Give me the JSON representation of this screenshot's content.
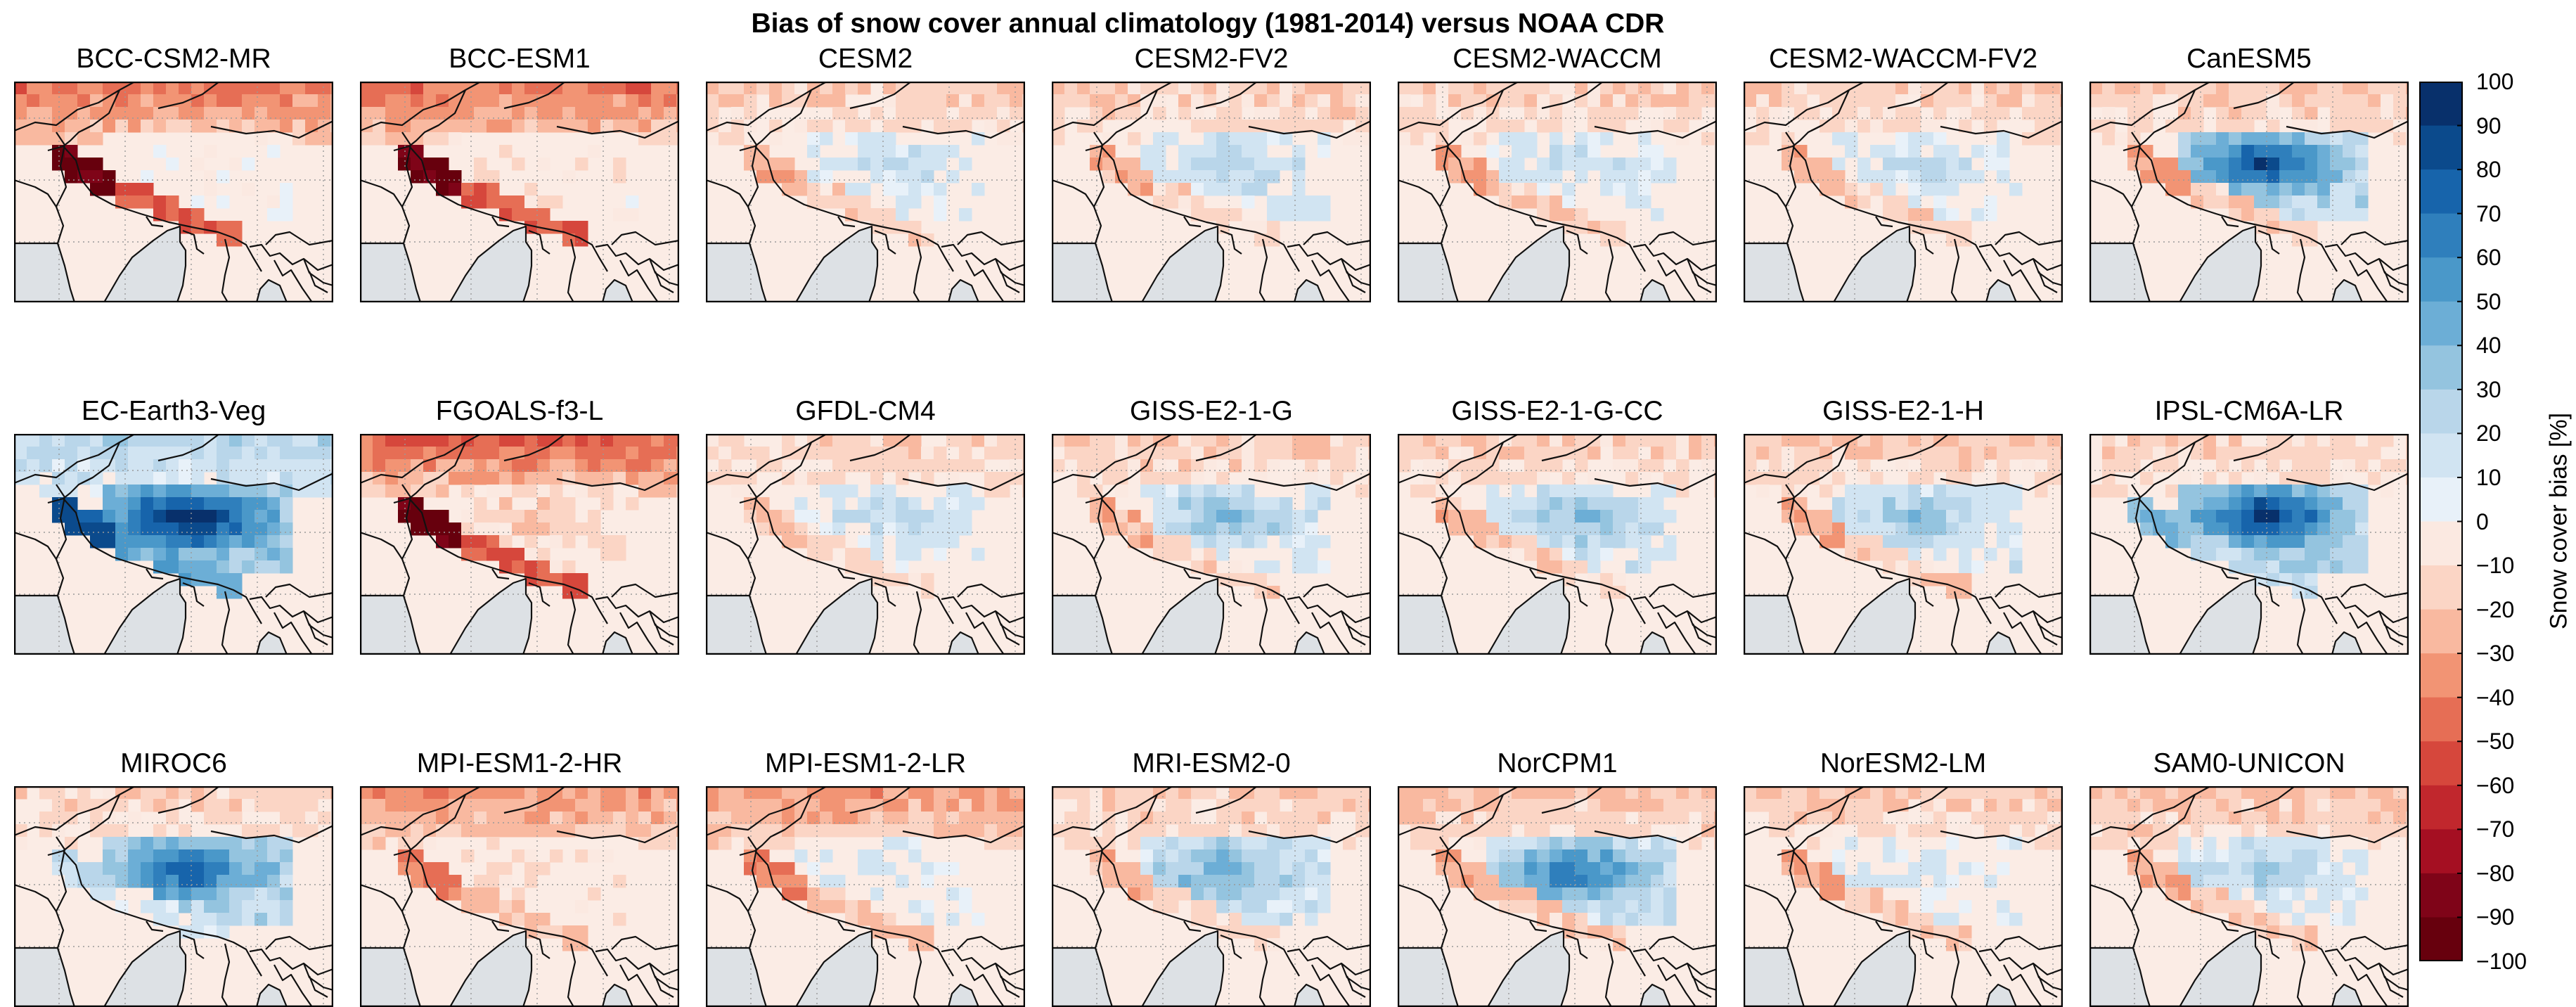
{
  "figure": {
    "title": "Bias of snow cover annual climatology (1981-2014) versus NOAA CDR"
  },
  "panels": [
    {
      "title": "BCC-CSM2-MR",
      "bias": -45,
      "hot": -90,
      "tibet": 0
    },
    {
      "title": "BCC-ESM1",
      "bias": -45,
      "hot": -90,
      "tibet": -5
    },
    {
      "title": "CESM2",
      "bias": -18,
      "hot": -25,
      "tibet": 15
    },
    {
      "title": "CESM2-FV2",
      "bias": -18,
      "hot": -25,
      "tibet": 22
    },
    {
      "title": "CESM2-WACCM",
      "bias": -18,
      "hot": -30,
      "tibet": 15
    },
    {
      "title": "CESM2-WACCM-FV2",
      "bias": -18,
      "hot": -25,
      "tibet": 18
    },
    {
      "title": "CanESM5",
      "bias": -20,
      "hot": -30,
      "tibet": 70
    },
    {
      "title": "EC-Earth3-Veg",
      "bias": 25,
      "hot": 85,
      "tibet": 90
    },
    {
      "title": "FGOALS-f3-L",
      "bias": -50,
      "hot": -95,
      "tibet": -15
    },
    {
      "title": "GFDL-CM4",
      "bias": -15,
      "hot": -20,
      "tibet": 18
    },
    {
      "title": "GISS-E2-1-G",
      "bias": -18,
      "hot": -25,
      "tibet": 30
    },
    {
      "title": "GISS-E2-1-G-CC",
      "bias": -18,
      "hot": -25,
      "tibet": 30
    },
    {
      "title": "GISS-E2-1-H",
      "bias": -20,
      "hot": -30,
      "tibet": 30
    },
    {
      "title": "IPSL-CM6A-LR",
      "bias": -15,
      "hot": 40,
      "tibet": 80
    },
    {
      "title": "MIROC6",
      "bias": -15,
      "hot": 20,
      "tibet": 65
    },
    {
      "title": "MPI-ESM1-2-HR",
      "bias": -35,
      "hot": -40,
      "tibet": -5
    },
    {
      "title": "MPI-ESM1-2-LR",
      "bias": -35,
      "hot": -40,
      "tibet": 10
    },
    {
      "title": "MRI-ESM2-0",
      "bias": -18,
      "hot": -25,
      "tibet": 40
    },
    {
      "title": "NorCPM1",
      "bias": -22,
      "hot": -30,
      "tibet": 55
    },
    {
      "title": "NorESM2-LM",
      "bias": -20,
      "hot": -30,
      "tibet": 10
    },
    {
      "title": "SAM0-UNICON",
      "bias": -22,
      "hot": -30,
      "tibet": 25
    }
  ],
  "colorbar": {
    "label": "Snow cover bias [%]",
    "ticks": [
      "100",
      "90",
      "80",
      "70",
      "60",
      "50",
      "40",
      "30",
      "20",
      "10",
      "0",
      "−10",
      "−20",
      "−30",
      "−40",
      "−50",
      "−60",
      "−70",
      "−80",
      "−90",
      "−100"
    ],
    "colors_top_to_bottom": [
      "#08306b",
      "#0b4a8c",
      "#1764ab",
      "#2f7fbc",
      "#4a98c9",
      "#6caed6",
      "#94c4df",
      "#b9d6ea",
      "#d1e4f2",
      "#e8f1f9",
      "#fbe9e1",
      "#fbd5c5",
      "#f9b9a0",
      "#f29474",
      "#e66e55",
      "#d6473c",
      "#c1272d",
      "#a50f22",
      "#7f0418",
      "#67000d"
    ]
  },
  "map_style": {
    "ocean": "#dde1e5",
    "land_neutral": "#fbece5",
    "coast": "#111111",
    "grid": "#999999"
  }
}
